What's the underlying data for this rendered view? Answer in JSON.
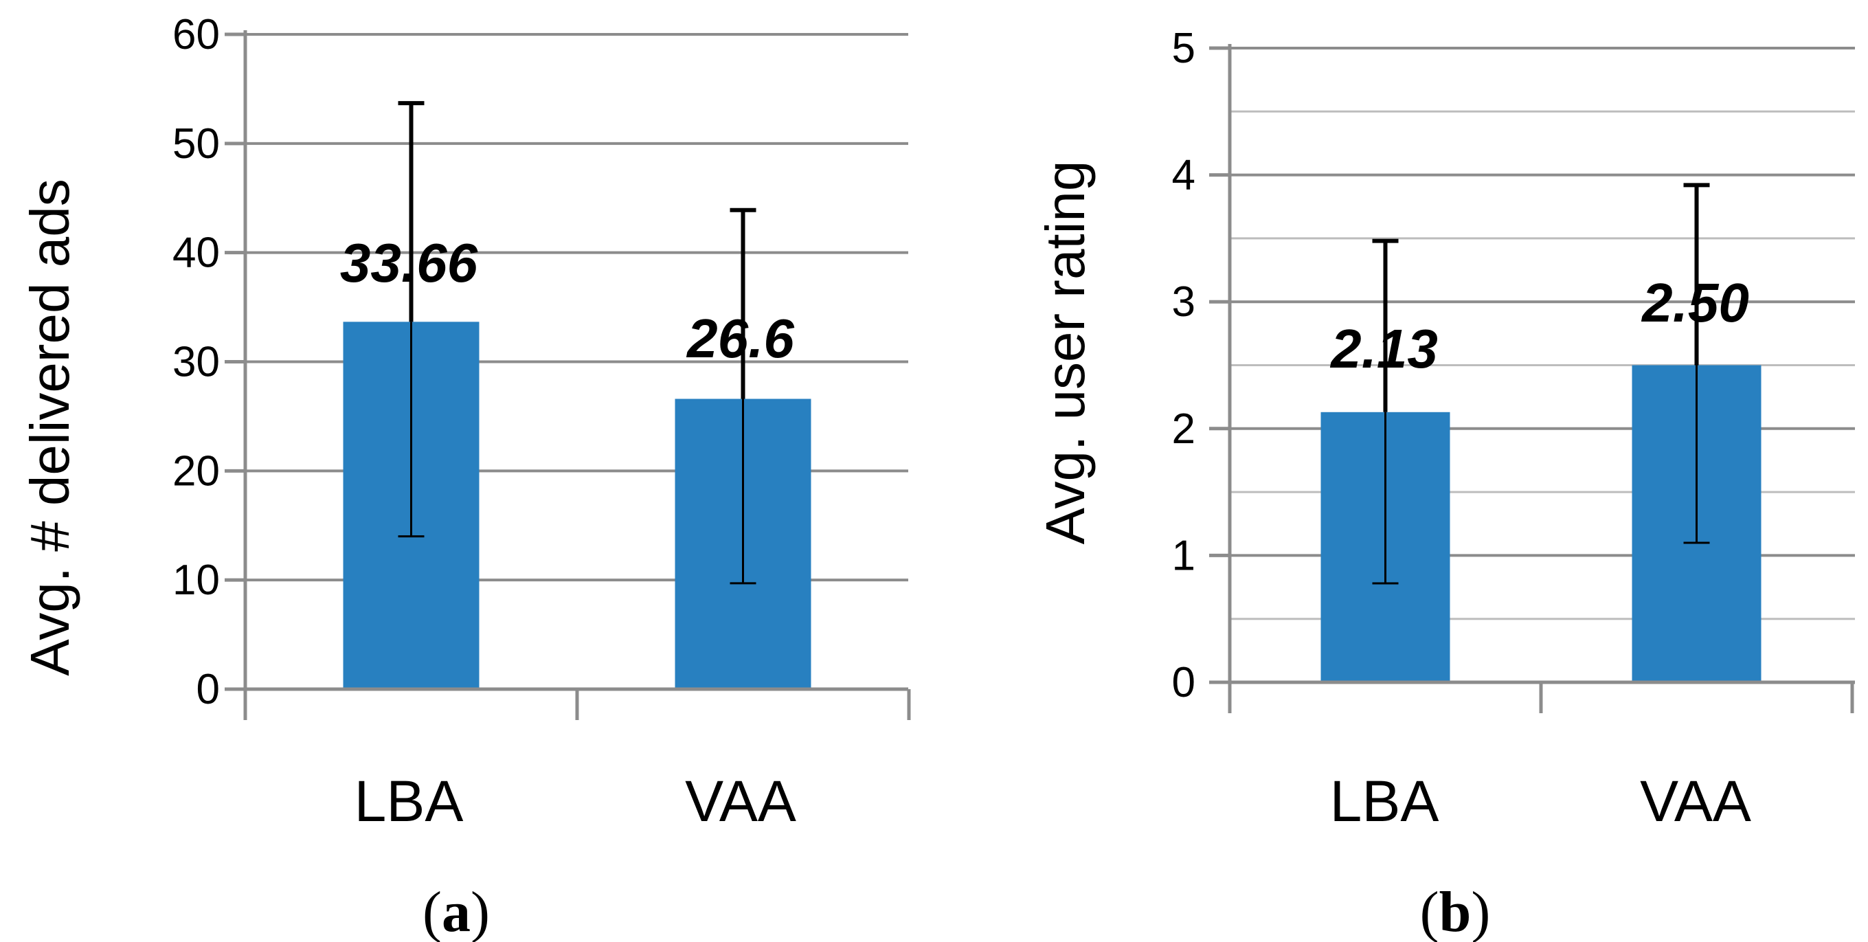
{
  "chart_data": [
    {
      "id": "a",
      "type": "bar",
      "caption_open": "(",
      "caption_letter": "a",
      "caption_close": ")",
      "title": "",
      "xlabel": "",
      "ylabel": "Avg. # delivered ads",
      "categories": [
        "LBA",
        "VAA"
      ],
      "values": [
        33.66,
        26.6
      ],
      "data_labels": [
        "33.66",
        "26.6"
      ],
      "error_low": [
        14,
        9.7
      ],
      "error_high": [
        53.7,
        43.9
      ],
      "ylim": [
        0,
        60
      ],
      "yticks": [
        0,
        10,
        20,
        30,
        40,
        50,
        60
      ],
      "ytick_labels": [
        "0",
        "10",
        "20",
        "30",
        "40",
        "50",
        "60"
      ],
      "grid_major": [
        10,
        20,
        30,
        40,
        50,
        60
      ],
      "grid_minor": [],
      "bar_color": "#2880C0"
    },
    {
      "id": "b",
      "type": "bar",
      "caption_open": "(",
      "caption_letter": "b",
      "caption_close": ")",
      "title": "",
      "xlabel": "",
      "ylabel": "Avg. user rating",
      "categories": [
        "LBA",
        "VAA"
      ],
      "values": [
        2.13,
        2.5
      ],
      "data_labels": [
        "2.13",
        "2.50"
      ],
      "error_low": [
        0.78,
        1.1
      ],
      "error_high": [
        3.48,
        3.92
      ],
      "ylim": [
        0,
        5
      ],
      "yticks": [
        0,
        1,
        2,
        3,
        4,
        5
      ],
      "ytick_labels": [
        "0",
        "1",
        "2",
        "3",
        "4",
        "5"
      ],
      "grid_major": [
        1,
        2,
        3,
        4,
        5
      ],
      "grid_minor": [
        0.5,
        1.5,
        2.5,
        3.5,
        4.5
      ],
      "bar_color": "#2880C0"
    }
  ],
  "colors": {
    "axis": "#8c8c8c",
    "grid": "#8c8c8c",
    "grid_minor": "#bdbdbd",
    "error_bar": "#000000"
  }
}
